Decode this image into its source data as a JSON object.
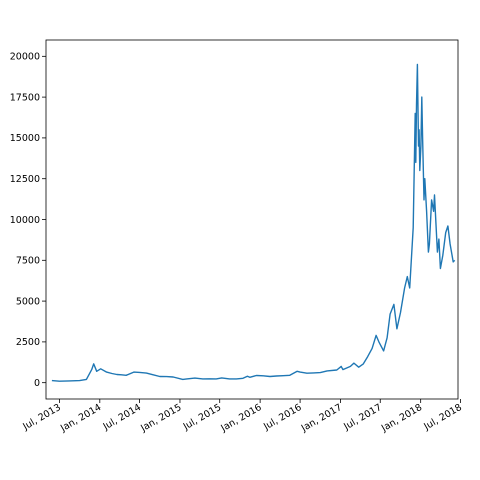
{
  "chart_data": {
    "type": "line",
    "title": "",
    "xlabel": "",
    "ylabel": "",
    "grid": false,
    "line_color": "#1f77b4",
    "xlim": [
      "2013-05-01",
      "2018-06-20"
    ],
    "ylim": [
      -1000,
      21000
    ],
    "yticks": [
      {
        "value": 0,
        "label": "0"
      },
      {
        "value": 2500,
        "label": "2500"
      },
      {
        "value": 5000,
        "label": "5000"
      },
      {
        "value": 7500,
        "label": "7500"
      },
      {
        "value": 10000,
        "label": "10000"
      },
      {
        "value": 12500,
        "label": "12500"
      },
      {
        "value": 15000,
        "label": "15000"
      },
      {
        "value": 17500,
        "label": "17500"
      },
      {
        "value": 20000,
        "label": "20000"
      }
    ],
    "xticks": [
      {
        "value": "2013-07-01",
        "label": "Jul, 2013"
      },
      {
        "value": "2014-01-01",
        "label": "Jan, 2014"
      },
      {
        "value": "2014-07-01",
        "label": "Jul, 2014"
      },
      {
        "value": "2015-01-01",
        "label": "Jan, 2015"
      },
      {
        "value": "2015-07-01",
        "label": "Jul, 2015"
      },
      {
        "value": "2016-01-01",
        "label": "Jan, 2016"
      },
      {
        "value": "2016-07-01",
        "label": "Jul, 2016"
      },
      {
        "value": "2017-01-01",
        "label": "Jan, 2017"
      },
      {
        "value": "2017-07-01",
        "label": "Jul, 2017"
      },
      {
        "value": "2018-01-01",
        "label": "Jan, 2018"
      },
      {
        "value": "2018-07-01",
        "label": "Jul, 2018"
      }
    ],
    "series": [
      {
        "x": [
          "2013-05-28",
          "2013-07-01",
          "2013-08-15",
          "2013-10-01",
          "2013-11-01",
          "2013-11-25",
          "2013-12-04",
          "2013-12-18",
          "2014-01-05",
          "2014-02-01",
          "2014-02-25",
          "2014-03-20",
          "2014-04-10",
          "2014-05-01",
          "2014-06-05",
          "2014-07-01",
          "2014-08-01",
          "2014-09-01",
          "2014-10-01",
          "2014-11-01",
          "2014-12-01",
          "2015-01-14",
          "2015-02-01",
          "2015-03-10",
          "2015-04-15",
          "2015-05-15",
          "2015-06-15",
          "2015-07-10",
          "2015-08-15",
          "2015-09-15",
          "2015-10-15",
          "2015-11-04",
          "2015-11-15",
          "2015-12-15",
          "2016-01-15",
          "2016-02-15",
          "2016-03-15",
          "2016-04-15",
          "2016-05-15",
          "2016-06-18",
          "2016-07-01",
          "2016-08-01",
          "2016-09-01",
          "2016-10-01",
          "2016-11-01",
          "2016-12-15",
          "2017-01-04",
          "2017-01-12",
          "2017-02-15",
          "2017-03-03",
          "2017-03-25",
          "2017-04-15",
          "2017-05-05",
          "2017-05-25",
          "2017-06-12",
          "2017-06-25",
          "2017-07-16",
          "2017-08-01",
          "2017-08-15",
          "2017-09-01",
          "2017-09-15",
          "2017-10-01",
          "2017-10-20",
          "2017-11-01",
          "2017-11-12",
          "2017-11-28",
          "2017-12-07",
          "2017-12-10",
          "2017-12-13",
          "2017-12-17",
          "2017-12-22",
          "2017-12-25",
          "2017-12-28",
          "2018-01-02",
          "2018-01-06",
          "2018-01-10",
          "2018-01-16",
          "2018-01-20",
          "2018-01-28",
          "2018-02-05",
          "2018-02-10",
          "2018-02-20",
          "2018-03-01",
          "2018-03-05",
          "2018-03-18",
          "2018-03-25",
          "2018-04-01",
          "2018-04-12",
          "2018-04-25",
          "2018-05-05",
          "2018-05-15",
          "2018-05-29",
          "2018-06-05"
        ],
        "y": [
          130,
          90,
          110,
          130,
          200,
          800,
          1150,
          700,
          850,
          650,
          560,
          500,
          480,
          450,
          650,
          630,
          590,
          480,
          380,
          370,
          350,
          200,
          230,
          280,
          230,
          240,
          230,
          290,
          230,
          230,
          270,
          400,
          330,
          440,
          420,
          380,
          410,
          430,
          450,
          700,
          650,
          580,
          600,
          620,
          720,
          780,
          1000,
          800,
          1000,
          1200,
          950,
          1150,
          1600,
          2100,
          2900,
          2500,
          1950,
          2750,
          4200,
          4800,
          3300,
          4300,
          5800,
          6500,
          5800,
          9500,
          16500,
          13500,
          17000,
          19500,
          14500,
          15500,
          13000,
          14500,
          17500,
          15000,
          11200,
          12500,
          10500,
          8000,
          8500,
          11200,
          10500,
          11500,
          8000,
          8800,
          7000,
          7800,
          9200,
          9600,
          8500,
          7400,
          7500
        ]
      }
    ]
  }
}
